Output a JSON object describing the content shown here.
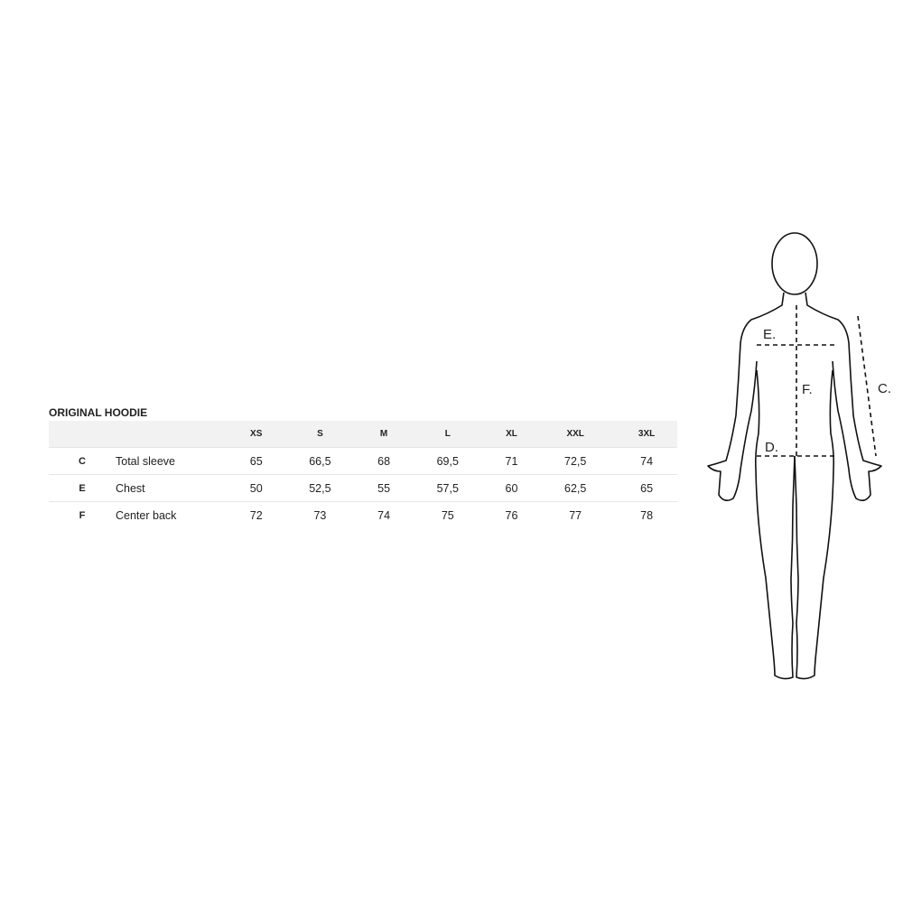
{
  "title": "ORIGINAL HOODIE",
  "table": {
    "headers": [
      "",
      "",
      "XS",
      "S",
      "M",
      "L",
      "XL",
      "XXL",
      "3XL"
    ],
    "rows": [
      {
        "code": "C",
        "label": "Total sleeve",
        "values": [
          "65",
          "66,5",
          "68",
          "69,5",
          "71",
          "72,5",
          "74"
        ]
      },
      {
        "code": "E",
        "label": "Chest",
        "values": [
          "50",
          "52,5",
          "55",
          "57,5",
          "60",
          "62,5",
          "65"
        ]
      },
      {
        "code": "F",
        "label": "Center back",
        "values": [
          "72",
          "73",
          "74",
          "75",
          "76",
          "77",
          "78"
        ]
      }
    ]
  },
  "figure": {
    "labels": {
      "e": "E.",
      "f": "F.",
      "d": "D.",
      "c": "C."
    }
  }
}
